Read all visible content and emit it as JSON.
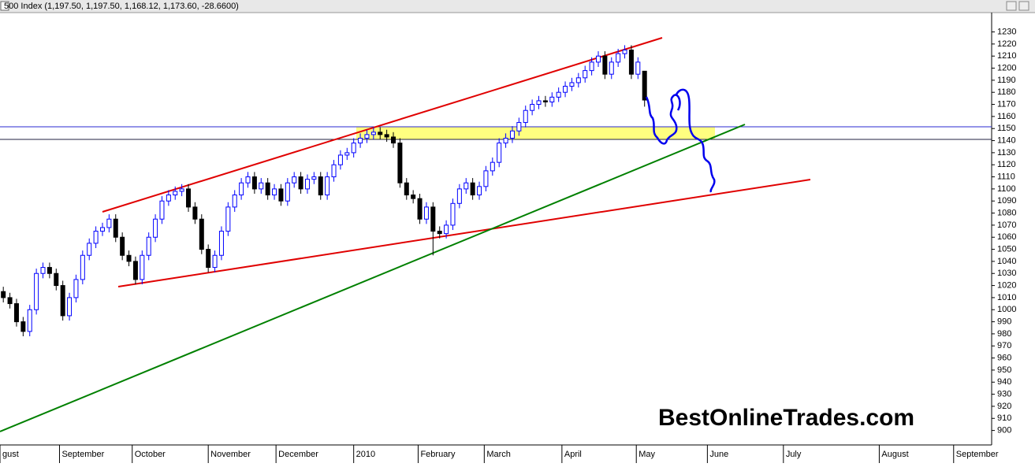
{
  "chart_data": {
    "type": "candlestick",
    "title": "500 Index (1,197.50, 1,197.50, 1,168.12, 1,173.60, -28.6600)",
    "annotations": [
      "BestOnlineTrades.com"
    ],
    "up_color": "#0000ff",
    "down_color": "#000000",
    "xlim": [
      0,
      300
    ],
    "ylim": [
      888,
      1246
    ],
    "yticks": [
      900,
      910,
      920,
      930,
      940,
      950,
      960,
      970,
      980,
      990,
      1000,
      1010,
      1020,
      1030,
      1040,
      1050,
      1060,
      1070,
      1080,
      1090,
      1100,
      1110,
      1120,
      1130,
      1140,
      1150,
      1160,
      1170,
      1180,
      1190,
      1200,
      1210,
      1220,
      1230
    ],
    "xticks": [
      {
        "value": 0,
        "label": "gust"
      },
      {
        "value": 18,
        "label": "September"
      },
      {
        "value": 40,
        "label": "October"
      },
      {
        "value": 63,
        "label": "November"
      },
      {
        "value": 83.5,
        "label": "December"
      },
      {
        "value": 107,
        "label": "2010"
      },
      {
        "value": 126.5,
        "label": "February"
      },
      {
        "value": 146.5,
        "label": "March"
      },
      {
        "value": 170,
        "label": "April"
      },
      {
        "value": 192.5,
        "label": "May"
      },
      {
        "value": 214,
        "label": "June"
      },
      {
        "value": 237,
        "label": "July"
      },
      {
        "value": 266,
        "label": "August"
      },
      {
        "value": 288.5,
        "label": "September"
      }
    ],
    "x": [
      1,
      3,
      5,
      7,
      9,
      11,
      13,
      15,
      17,
      19,
      21,
      23,
      25,
      27,
      29,
      31,
      33,
      35,
      37,
      39,
      41,
      43,
      45,
      47,
      49,
      51,
      53,
      55,
      57,
      59,
      61,
      63,
      65,
      67,
      69,
      71,
      73,
      75,
      77,
      79,
      81,
      83,
      85,
      87,
      89,
      91,
      93,
      95,
      97,
      99,
      101,
      103,
      105,
      107,
      109,
      111,
      113,
      115,
      117,
      119,
      121,
      123,
      125,
      127,
      129,
      131,
      133,
      135,
      137,
      139,
      141,
      143,
      145,
      147,
      149,
      151,
      153,
      155,
      157,
      159,
      161,
      163,
      165,
      167,
      169,
      171,
      173,
      175,
      177,
      179,
      181,
      183,
      185,
      187,
      189,
      191,
      193,
      195
    ],
    "ohlc": [
      [
        1015,
        1019,
        1006,
        1010
      ],
      [
        1010,
        1014,
        1001,
        1005
      ],
      [
        1005,
        1009,
        986,
        990
      ],
      [
        990,
        994,
        978,
        982
      ],
      [
        982,
        1004,
        978,
        1000
      ],
      [
        1000,
        1034,
        996,
        1030
      ],
      [
        1030,
        1039,
        1026,
        1035
      ],
      [
        1035,
        1039,
        1026,
        1030
      ],
      [
        1030,
        1034,
        1016,
        1020
      ],
      [
        1020,
        1024,
        991,
        995
      ],
      [
        995,
        1014,
        991,
        1010
      ],
      [
        1010,
        1029,
        1006,
        1025
      ],
      [
        1025,
        1049,
        1021,
        1045
      ],
      [
        1045,
        1059,
        1041,
        1055
      ],
      [
        1055,
        1069,
        1051,
        1065
      ],
      [
        1065,
        1072,
        1061,
        1068
      ],
      [
        1068,
        1079,
        1064,
        1075
      ],
      [
        1075,
        1079,
        1056,
        1060
      ],
      [
        1060,
        1064,
        1041,
        1045
      ],
      [
        1045,
        1049,
        1036,
        1040
      ],
      [
        1040,
        1044,
        1021,
        1025
      ],
      [
        1025,
        1049,
        1021,
        1045
      ],
      [
        1045,
        1064,
        1041,
        1060
      ],
      [
        1060,
        1079,
        1056,
        1075
      ],
      [
        1075,
        1094,
        1071,
        1090
      ],
      [
        1090,
        1099,
        1086,
        1095
      ],
      [
        1095,
        1102,
        1091,
        1098
      ],
      [
        1098,
        1104,
        1094,
        1100
      ],
      [
        1100,
        1104,
        1081,
        1085
      ],
      [
        1085,
        1089,
        1071,
        1075
      ],
      [
        1075,
        1079,
        1046,
        1050
      ],
      [
        1050,
        1054,
        1031,
        1035
      ],
      [
        1035,
        1049,
        1031,
        1045
      ],
      [
        1045,
        1069,
        1041,
        1065
      ],
      [
        1065,
        1089,
        1061,
        1085
      ],
      [
        1085,
        1099,
        1081,
        1095
      ],
      [
        1095,
        1109,
        1091,
        1105
      ],
      [
        1105,
        1114,
        1101,
        1110
      ],
      [
        1110,
        1114,
        1096,
        1100
      ],
      [
        1100,
        1109,
        1096,
        1105
      ],
      [
        1105,
        1109,
        1091,
        1095
      ],
      [
        1095,
        1104,
        1091,
        1100
      ],
      [
        1100,
        1104,
        1086,
        1090
      ],
      [
        1090,
        1109,
        1086,
        1105
      ],
      [
        1105,
        1114,
        1101,
        1110
      ],
      [
        1110,
        1114,
        1096,
        1100
      ],
      [
        1100,
        1112,
        1096,
        1108
      ],
      [
        1108,
        1114,
        1104,
        1110
      ],
      [
        1110,
        1114,
        1091,
        1095
      ],
      [
        1095,
        1114,
        1091,
        1110
      ],
      [
        1110,
        1124,
        1106,
        1120
      ],
      [
        1120,
        1132,
        1116,
        1128
      ],
      [
        1128,
        1134,
        1124,
        1130
      ],
      [
        1130,
        1142,
        1126,
        1138
      ],
      [
        1138,
        1146,
        1134,
        1142
      ],
      [
        1142,
        1149,
        1138,
        1145
      ],
      [
        1145,
        1151,
        1141,
        1147
      ],
      [
        1147,
        1151,
        1141,
        1145
      ],
      [
        1145,
        1149,
        1139,
        1143
      ],
      [
        1143,
        1147,
        1134,
        1138
      ],
      [
        1138,
        1142,
        1101,
        1105
      ],
      [
        1105,
        1109,
        1091,
        1095
      ],
      [
        1095,
        1099,
        1088,
        1092
      ],
      [
        1092,
        1096,
        1071,
        1075
      ],
      [
        1075,
        1089,
        1071,
        1085
      ],
      [
        1085,
        1089,
        1045,
        1065
      ],
      [
        1065,
        1069,
        1059,
        1063
      ],
      [
        1063,
        1074,
        1059,
        1070
      ],
      [
        1070,
        1092,
        1066,
        1088
      ],
      [
        1088,
        1104,
        1084,
        1100
      ],
      [
        1100,
        1109,
        1096,
        1105
      ],
      [
        1105,
        1109,
        1091,
        1095
      ],
      [
        1095,
        1106,
        1091,
        1102
      ],
      [
        1102,
        1119,
        1098,
        1115
      ],
      [
        1115,
        1126,
        1111,
        1122
      ],
      [
        1122,
        1142,
        1118,
        1138
      ],
      [
        1138,
        1146,
        1134,
        1142
      ],
      [
        1142,
        1152,
        1138,
        1148
      ],
      [
        1148,
        1159,
        1144,
        1155
      ],
      [
        1155,
        1169,
        1151,
        1165
      ],
      [
        1165,
        1174,
        1161,
        1170
      ],
      [
        1170,
        1177,
        1166,
        1173
      ],
      [
        1173,
        1177,
        1168,
        1172
      ],
      [
        1172,
        1180,
        1168,
        1176
      ],
      [
        1176,
        1184,
        1172,
        1180
      ],
      [
        1180,
        1189,
        1176,
        1185
      ],
      [
        1185,
        1192,
        1181,
        1188
      ],
      [
        1188,
        1196,
        1184,
        1192
      ],
      [
        1192,
        1202,
        1188,
        1198
      ],
      [
        1198,
        1209,
        1194,
        1205
      ],
      [
        1205,
        1214,
        1201,
        1210
      ],
      [
        1210,
        1214,
        1191,
        1195
      ],
      [
        1195,
        1209,
        1191,
        1205
      ],
      [
        1205,
        1216,
        1201,
        1212
      ],
      [
        1212,
        1219,
        1208,
        1215
      ],
      [
        1215,
        1219,
        1191,
        1195
      ],
      [
        1195,
        1209,
        1191,
        1205
      ],
      [
        1197.5,
        1197.5,
        1168.12,
        1173.6
      ]
    ]
  }
}
